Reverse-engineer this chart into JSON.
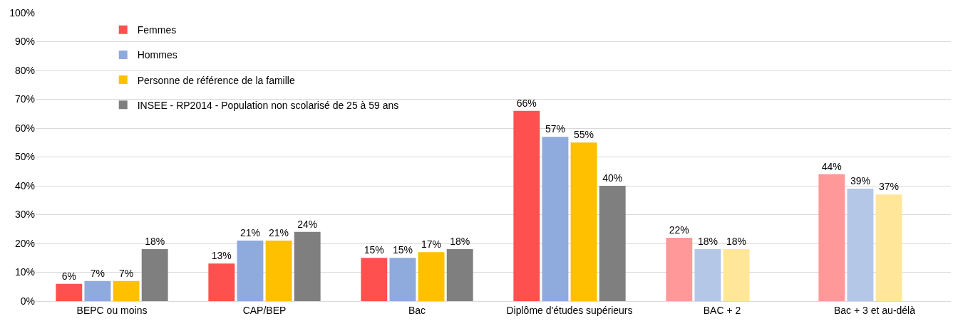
{
  "chart_data": {
    "type": "bar",
    "categories": [
      "BEPC ou moins",
      "CAP/BEP",
      "Bac",
      "Diplôme d'études supérieurs",
      "BAC + 2",
      "Bac + 3 et au-délà"
    ],
    "series": [
      {
        "name": "Femmes",
        "color": "#ff5050",
        "colors": [
          null,
          null,
          null,
          null,
          "#ff9999",
          "#ff9999"
        ],
        "values": [
          6,
          13,
          15,
          66,
          22,
          44
        ],
        "value_labels": [
          "6%",
          "13%",
          "15%",
          "66%",
          "22%",
          "44%"
        ]
      },
      {
        "name": "Hommes",
        "color": "#8faadc",
        "colors": [
          null,
          null,
          null,
          null,
          "#b4c7e7",
          "#b4c7e7"
        ],
        "values": [
          7,
          21,
          15,
          57,
          18,
          39
        ],
        "value_labels": [
          "7%",
          "21%",
          "15%",
          "57%",
          "18%",
          "39%"
        ]
      },
      {
        "name": "Personne de référence de la famille",
        "color": "#ffc000",
        "colors": [
          null,
          null,
          null,
          null,
          "#ffe699",
          "#ffe699"
        ],
        "values": [
          7,
          21,
          17,
          55,
          18,
          37
        ],
        "value_labels": [
          "7%",
          "21%",
          "17%",
          "55%",
          "18%",
          "37%"
        ]
      },
      {
        "name": "INSEE - RP2014 - Population non scolarisé de 25 à 59 ans",
        "color": "#7f7f7f",
        "values": [
          18,
          24,
          18,
          40,
          null,
          null
        ],
        "value_labels": [
          "18%",
          "24%",
          "18%",
          "40%",
          null,
          null
        ]
      }
    ],
    "ylim": [
      0,
      100
    ],
    "yticks": [
      {
        "value": 0,
        "label": "0%"
      },
      {
        "value": 10,
        "label": "10%"
      },
      {
        "value": 20,
        "label": "20%"
      },
      {
        "value": 30,
        "label": "30%"
      },
      {
        "value": 40,
        "label": "40%"
      },
      {
        "value": 50,
        "label": "50%"
      },
      {
        "value": 60,
        "label": "60%"
      },
      {
        "value": 70,
        "label": "70%"
      },
      {
        "value": 80,
        "label": "80%"
      },
      {
        "value": 90,
        "label": "90%"
      },
      {
        "value": 100,
        "label": "100%"
      }
    ],
    "grid": "y",
    "legend": "top left"
  }
}
